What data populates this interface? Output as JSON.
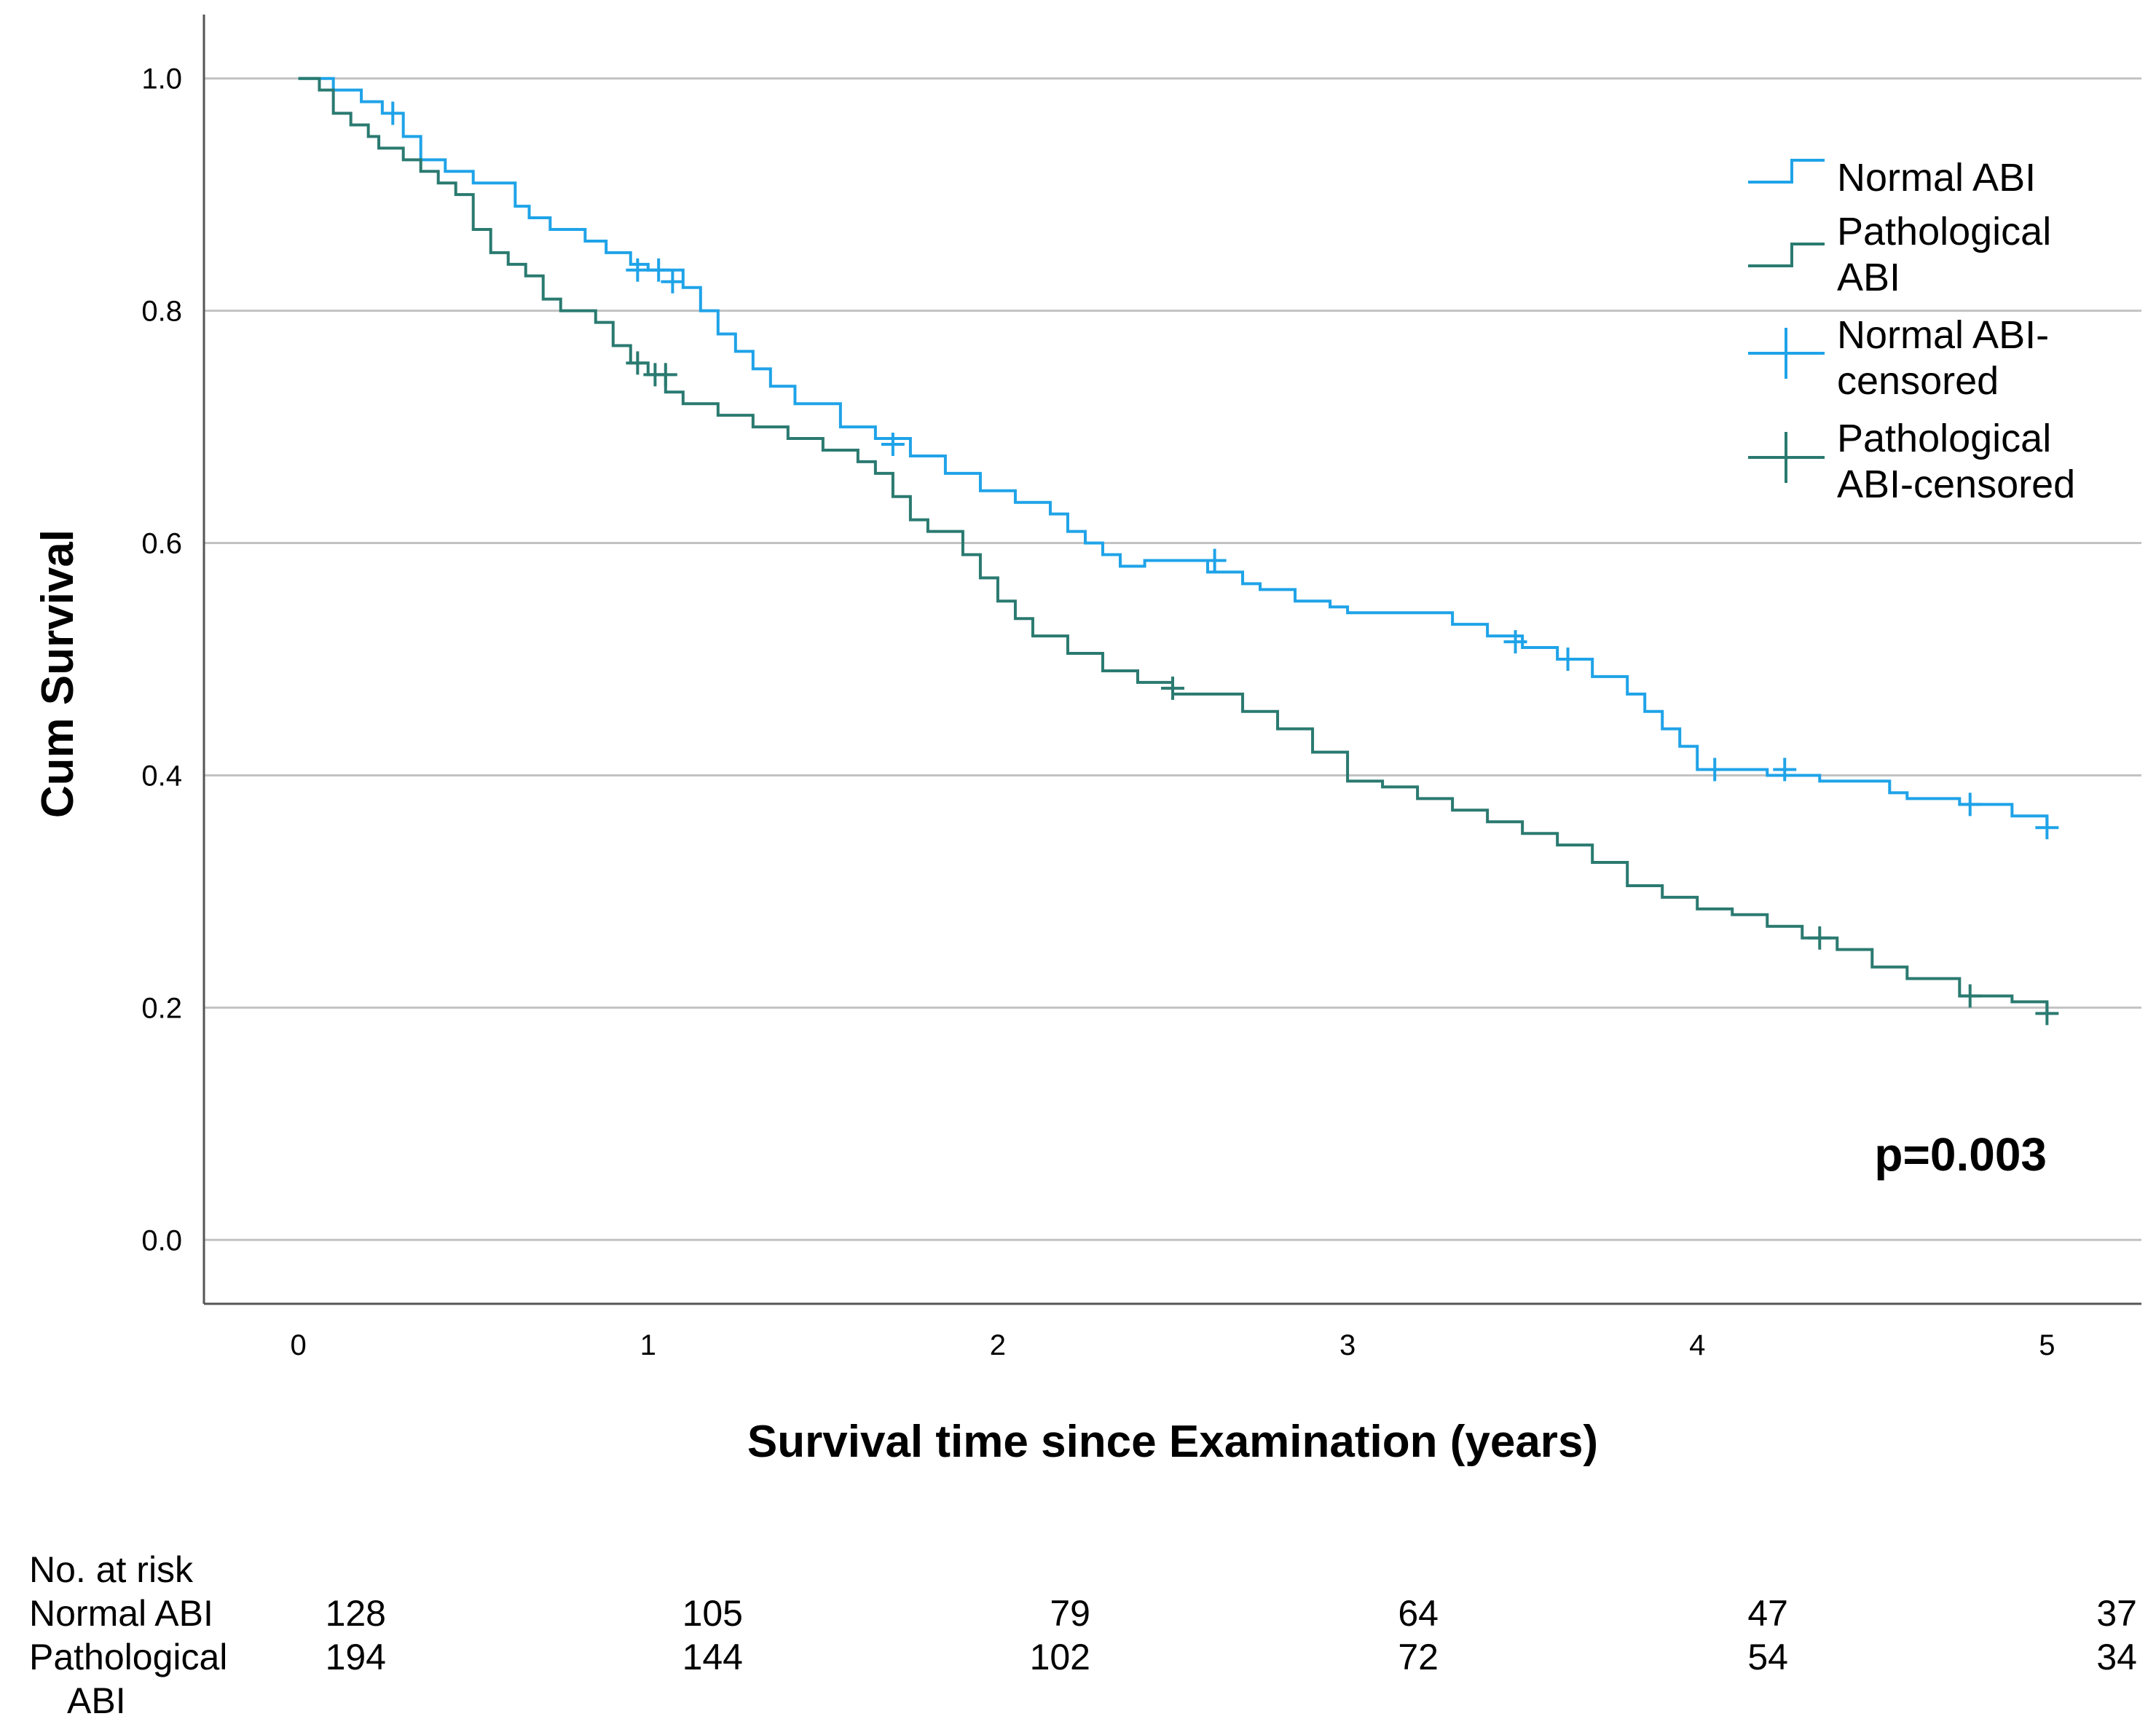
{
  "chart_data": {
    "type": "line",
    "step": true,
    "title": "",
    "xlabel": "Survival time since Examination (years)",
    "ylabel": "Cum Survival",
    "xlim": [
      -0.27,
      5.27
    ],
    "ylim": [
      -0.055,
      1.055
    ],
    "x_ticks": [
      0,
      1,
      2,
      3,
      4,
      5
    ],
    "x_tick_labels": [
      "0",
      "1",
      "2",
      "3",
      "4",
      "5"
    ],
    "y_ticks": [
      0.0,
      0.2,
      0.4,
      0.6,
      0.8,
      1.0
    ],
    "y_tick_labels": [
      "0.0",
      "0.2",
      "0.4",
      "0.6",
      "0.8",
      "1.0"
    ],
    "grid": "horizontal",
    "legend_position": "top-right",
    "legend": [
      "Normal ABI",
      "Pathological ABI",
      "Normal ABI-censored",
      "Pathological ABI-censored"
    ],
    "colors": {
      "normal": "#1fa3e8",
      "pathological": "#2a7a70",
      "grid": "#c2c2c2",
      "axis": "#555555"
    },
    "annotation": "p=0.003",
    "series": [
      {
        "name": "Normal ABI",
        "color": "#1fa3e8",
        "x": [
          0,
          0.1,
          0.18,
          0.24,
          0.3,
          0.35,
          0.42,
          0.5,
          0.62,
          0.66,
          0.72,
          0.82,
          0.88,
          0.95,
          1.0,
          1.1,
          1.15,
          1.2,
          1.25,
          1.3,
          1.35,
          1.42,
          1.55,
          1.65,
          1.75,
          1.85,
          1.95,
          2.05,
          2.15,
          2.2,
          2.25,
          2.3,
          2.35,
          2.42,
          2.6,
          2.7,
          2.75,
          2.85,
          2.95,
          3.0,
          3.3,
          3.4,
          3.5,
          3.6,
          3.7,
          3.8,
          3.85,
          3.9,
          3.95,
          4.0,
          4.2,
          4.35,
          4.55,
          4.6,
          4.75,
          4.9,
          5.0
        ],
        "y": [
          1.0,
          0.99,
          0.98,
          0.97,
          0.95,
          0.93,
          0.92,
          0.91,
          0.89,
          0.88,
          0.87,
          0.86,
          0.85,
          0.84,
          0.835,
          0.82,
          0.8,
          0.78,
          0.765,
          0.75,
          0.735,
          0.72,
          0.7,
          0.69,
          0.675,
          0.66,
          0.645,
          0.635,
          0.625,
          0.61,
          0.6,
          0.59,
          0.58,
          0.585,
          0.575,
          0.565,
          0.56,
          0.55,
          0.545,
          0.54,
          0.53,
          0.52,
          0.51,
          0.5,
          0.485,
          0.47,
          0.455,
          0.44,
          0.425,
          0.405,
          0.4,
          0.395,
          0.385,
          0.38,
          0.375,
          0.365,
          0.355
        ],
        "censored_x": [
          0.27,
          0.97,
          1.03,
          1.07,
          1.7,
          2.62,
          3.48,
          3.63,
          4.05,
          4.25,
          4.78,
          5.0
        ],
        "censored_y": [
          0.97,
          0.835,
          0.835,
          0.825,
          0.685,
          0.585,
          0.515,
          0.5,
          0.405,
          0.405,
          0.375,
          0.355
        ]
      },
      {
        "name": "Pathological ABI",
        "color": "#2a7a70",
        "x": [
          0,
          0.06,
          0.1,
          0.15,
          0.2,
          0.23,
          0.3,
          0.35,
          0.4,
          0.45,
          0.5,
          0.55,
          0.6,
          0.65,
          0.7,
          0.75,
          0.85,
          0.9,
          0.95,
          1.0,
          1.05,
          1.1,
          1.2,
          1.3,
          1.4,
          1.5,
          1.6,
          1.65,
          1.7,
          1.75,
          1.8,
          1.9,
          1.95,
          2.0,
          2.05,
          2.1,
          2.2,
          2.3,
          2.4,
          2.5,
          2.7,
          2.8,
          2.9,
          3.0,
          3.1,
          3.2,
          3.3,
          3.4,
          3.5,
          3.6,
          3.7,
          3.8,
          3.9,
          4.0,
          4.1,
          4.2,
          4.3,
          4.4,
          4.5,
          4.6,
          4.75,
          4.9,
          5.0
        ],
        "y": [
          1.0,
          0.99,
          0.97,
          0.96,
          0.95,
          0.94,
          0.93,
          0.92,
          0.91,
          0.9,
          0.87,
          0.85,
          0.84,
          0.83,
          0.81,
          0.8,
          0.79,
          0.77,
          0.755,
          0.745,
          0.73,
          0.72,
          0.71,
          0.7,
          0.69,
          0.68,
          0.67,
          0.66,
          0.64,
          0.62,
          0.61,
          0.59,
          0.57,
          0.55,
          0.535,
          0.52,
          0.505,
          0.49,
          0.48,
          0.47,
          0.455,
          0.44,
          0.42,
          0.395,
          0.39,
          0.38,
          0.37,
          0.36,
          0.35,
          0.34,
          0.325,
          0.305,
          0.295,
          0.285,
          0.28,
          0.27,
          0.26,
          0.25,
          0.235,
          0.225,
          0.21,
          0.205,
          0.195
        ],
        "censored_x": [
          0.97,
          1.02,
          1.05,
          2.5,
          4.35,
          4.78,
          5.0
        ],
        "censored_y": [
          0.755,
          0.745,
          0.745,
          0.475,
          0.26,
          0.21,
          0.195
        ]
      }
    ],
    "risk_table": {
      "header": "No. at risk",
      "rows": [
        {
          "label_lines": [
            "Normal ABI"
          ],
          "values": [
            "128",
            "105",
            "79",
            "64",
            "47",
            "37"
          ]
        },
        {
          "label_lines": [
            "Pathological",
            "ABI"
          ],
          "values": [
            "194",
            "144",
            "102",
            "72",
            "54",
            "34"
          ]
        }
      ]
    }
  }
}
